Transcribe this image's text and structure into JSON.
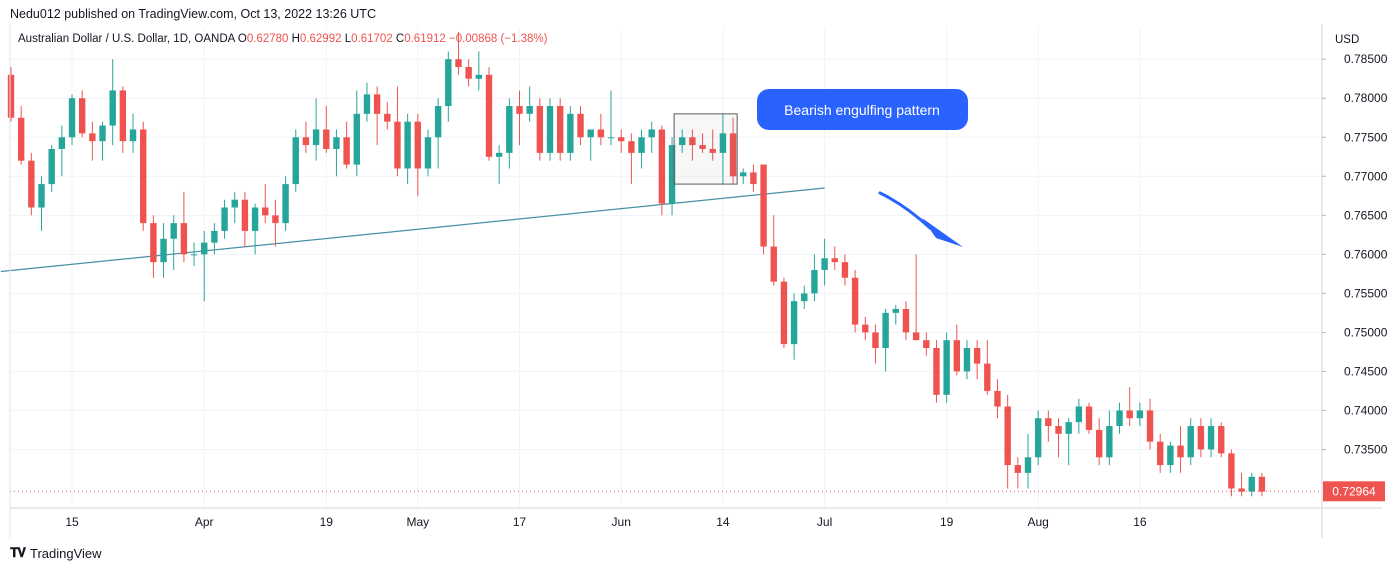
{
  "header": {
    "published": "Nedu012 published on TradingView.com, Oct 13, 2022 13:26 UTC",
    "symbol": "Australian Dollar / U.S. Dollar, 1D, OANDA",
    "o_label": "O",
    "o_value": "0.62780",
    "h_label": "H",
    "h_value": "0.62992",
    "l_label": "L",
    "l_value": "0.61702",
    "c_label": "C",
    "c_value": "0.61912",
    "change": "−0.00868 (−1.38%)",
    "currency": "USD"
  },
  "footer": {
    "brand": "TradingView",
    "brand_icon": "tradingview-logo-icon"
  },
  "colors": {
    "up": "#26a69a",
    "down": "#ef5350",
    "annotation": "#2962ff",
    "trendline": "#4a90a4",
    "grid": "#f0f3fa"
  },
  "chart_data": {
    "type": "candlestick",
    "ylim": [
      0.7275,
      0.789
    ],
    "yticks": [
      "0.78500",
      "0.78000",
      "0.77500",
      "0.77000",
      "0.76500",
      "0.76000",
      "0.75500",
      "0.75000",
      "0.74500",
      "0.74000",
      "0.73500"
    ],
    "last_price": "0.72964",
    "xticks": [
      {
        "label": "15",
        "index": 6
      },
      {
        "label": "Apr",
        "index": 19
      },
      {
        "label": "19",
        "index": 31
      },
      {
        "label": "May",
        "index": 40
      },
      {
        "label": "17",
        "index": 50
      },
      {
        "label": "Jun",
        "index": 60
      },
      {
        "label": "14",
        "index": 70
      },
      {
        "label": "Jul",
        "index": 80
      },
      {
        "label": "19",
        "index": 92
      },
      {
        "label": "Aug",
        "index": 101
      },
      {
        "label": "16",
        "index": 111
      }
    ],
    "annotation": {
      "text": "Bearish engulfing pattern"
    },
    "trendline": {
      "from": {
        "index": -1,
        "price": 0.7578
      },
      "to": {
        "index": 80,
        "price": 0.7685
      }
    },
    "pattern_box": {
      "from_index": 65.2,
      "to_index": 71.4,
      "price_high": 0.778,
      "price_low": 0.769
    },
    "candles": [
      [
        0.783,
        0.784,
        0.777,
        0.7775
      ],
      [
        0.7775,
        0.779,
        0.7715,
        0.772
      ],
      [
        0.772,
        0.773,
        0.765,
        0.766
      ],
      [
        0.766,
        0.77,
        0.763,
        0.769
      ],
      [
        0.769,
        0.774,
        0.768,
        0.7735
      ],
      [
        0.7735,
        0.7765,
        0.77,
        0.775
      ],
      [
        0.775,
        0.7805,
        0.774,
        0.78
      ],
      [
        0.78,
        0.781,
        0.775,
        0.7755
      ],
      [
        0.7755,
        0.777,
        0.772,
        0.7745
      ],
      [
        0.7745,
        0.777,
        0.772,
        0.7765
      ],
      [
        0.7765,
        0.785,
        0.774,
        0.781
      ],
      [
        0.781,
        0.7815,
        0.773,
        0.7745
      ],
      [
        0.7745,
        0.778,
        0.773,
        0.776
      ],
      [
        0.776,
        0.777,
        0.763,
        0.764
      ],
      [
        0.764,
        0.765,
        0.757,
        0.759
      ],
      [
        0.759,
        0.764,
        0.757,
        0.762
      ],
      [
        0.762,
        0.765,
        0.758,
        0.764
      ],
      [
        0.764,
        0.768,
        0.759,
        0.76
      ],
      [
        0.76,
        0.7615,
        0.7585,
        0.76
      ],
      [
        0.76,
        0.763,
        0.754,
        0.7615
      ],
      [
        0.7615,
        0.764,
        0.76,
        0.763
      ],
      [
        0.763,
        0.767,
        0.762,
        0.766
      ],
      [
        0.766,
        0.768,
        0.764,
        0.767
      ],
      [
        0.767,
        0.768,
        0.761,
        0.763
      ],
      [
        0.763,
        0.7665,
        0.76,
        0.766
      ],
      [
        0.766,
        0.769,
        0.764,
        0.765
      ],
      [
        0.765,
        0.767,
        0.761,
        0.764
      ],
      [
        0.764,
        0.77,
        0.763,
        0.769
      ],
      [
        0.769,
        0.776,
        0.768,
        0.775
      ],
      [
        0.775,
        0.777,
        0.773,
        0.774
      ],
      [
        0.774,
        0.78,
        0.772,
        0.776
      ],
      [
        0.776,
        0.779,
        0.773,
        0.7735
      ],
      [
        0.7735,
        0.776,
        0.77,
        0.775
      ],
      [
        0.775,
        0.777,
        0.771,
        0.7715
      ],
      [
        0.7715,
        0.781,
        0.77,
        0.778
      ],
      [
        0.778,
        0.782,
        0.777,
        0.7805
      ],
      [
        0.7805,
        0.7815,
        0.774,
        0.778
      ],
      [
        0.778,
        0.7795,
        0.776,
        0.777
      ],
      [
        0.777,
        0.7815,
        0.77,
        0.771
      ],
      [
        0.771,
        0.778,
        0.769,
        0.777
      ],
      [
        0.777,
        0.778,
        0.7675,
        0.771
      ],
      [
        0.771,
        0.776,
        0.77,
        0.775
      ],
      [
        0.775,
        0.78,
        0.771,
        0.779
      ],
      [
        0.779,
        0.786,
        0.777,
        0.785
      ],
      [
        0.785,
        0.7885,
        0.783,
        0.784
      ],
      [
        0.784,
        0.785,
        0.7815,
        0.7825
      ],
      [
        0.7825,
        0.786,
        0.781,
        0.783
      ],
      [
        0.783,
        0.784,
        0.772,
        0.7725
      ],
      [
        0.7725,
        0.774,
        0.769,
        0.773
      ],
      [
        0.773,
        0.78,
        0.771,
        0.779
      ],
      [
        0.779,
        0.781,
        0.774,
        0.778
      ],
      [
        0.778,
        0.7815,
        0.777,
        0.779
      ],
      [
        0.779,
        0.78,
        0.772,
        0.773
      ],
      [
        0.773,
        0.78,
        0.772,
        0.779
      ],
      [
        0.779,
        0.78,
        0.772,
        0.773
      ],
      [
        0.773,
        0.779,
        0.772,
        0.778
      ],
      [
        0.778,
        0.779,
        0.774,
        0.775
      ],
      [
        0.775,
        0.776,
        0.772,
        0.776
      ],
      [
        0.776,
        0.778,
        0.774,
        0.775
      ],
      [
        0.775,
        0.781,
        0.774,
        0.775
      ],
      [
        0.775,
        0.776,
        0.773,
        0.7745
      ],
      [
        0.7745,
        0.7755,
        0.769,
        0.773
      ],
      [
        0.773,
        0.776,
        0.771,
        0.775
      ],
      [
        0.775,
        0.777,
        0.773,
        0.776
      ],
      [
        0.776,
        0.7765,
        0.765,
        0.7665
      ],
      [
        0.7665,
        0.775,
        0.765,
        0.774
      ],
      [
        0.774,
        0.776,
        0.773,
        0.775
      ],
      [
        0.775,
        0.776,
        0.772,
        0.774
      ],
      [
        0.774,
        0.7755,
        0.773,
        0.7735
      ],
      [
        0.7735,
        0.776,
        0.772,
        0.773
      ],
      [
        0.773,
        0.778,
        0.769,
        0.7755
      ],
      [
        0.7755,
        0.7775,
        0.769,
        0.77
      ],
      [
        0.77,
        0.771,
        0.769,
        0.7705
      ],
      [
        0.7705,
        0.7715,
        0.768,
        0.769
      ],
      [
        0.7715,
        0.7715,
        0.76,
        0.761
      ],
      [
        0.761,
        0.765,
        0.756,
        0.7565
      ],
      [
        0.7565,
        0.757,
        0.748,
        0.7485
      ],
      [
        0.7485,
        0.755,
        0.7465,
        0.754
      ],
      [
        0.754,
        0.756,
        0.753,
        0.755
      ],
      [
        0.755,
        0.76,
        0.754,
        0.758
      ],
      [
        0.758,
        0.762,
        0.756,
        0.7595
      ],
      [
        0.7595,
        0.761,
        0.758,
        0.759
      ],
      [
        0.759,
        0.76,
        0.756,
        0.757
      ],
      [
        0.757,
        0.758,
        0.75,
        0.751
      ],
      [
        0.751,
        0.752,
        0.749,
        0.75
      ],
      [
        0.75,
        0.751,
        0.746,
        0.748
      ],
      [
        0.748,
        0.753,
        0.745,
        0.7525
      ],
      [
        0.7525,
        0.7535,
        0.751,
        0.753
      ],
      [
        0.753,
        0.754,
        0.749,
        0.75
      ],
      [
        0.75,
        0.76,
        0.749,
        0.749
      ],
      [
        0.749,
        0.75,
        0.747,
        0.748
      ],
      [
        0.748,
        0.749,
        0.741,
        0.742
      ],
      [
        0.742,
        0.75,
        0.741,
        0.749
      ],
      [
        0.749,
        0.751,
        0.7445,
        0.745
      ],
      [
        0.745,
        0.749,
        0.744,
        0.748
      ],
      [
        0.748,
        0.749,
        0.744,
        0.746
      ],
      [
        0.746,
        0.749,
        0.742,
        0.7425
      ],
      [
        0.7425,
        0.744,
        0.739,
        0.7405
      ],
      [
        0.7405,
        0.742,
        0.73,
        0.733
      ],
      [
        0.733,
        0.734,
        0.73,
        0.732
      ],
      [
        0.732,
        0.737,
        0.73,
        0.734
      ],
      [
        0.734,
        0.74,
        0.733,
        0.739
      ],
      [
        0.739,
        0.74,
        0.736,
        0.738
      ],
      [
        0.738,
        0.739,
        0.734,
        0.737
      ],
      [
        0.737,
        0.739,
        0.733,
        0.7385
      ],
      [
        0.7385,
        0.7415,
        0.737,
        0.7405
      ],
      [
        0.7405,
        0.741,
        0.737,
        0.7375
      ],
      [
        0.7375,
        0.739,
        0.733,
        0.734
      ],
      [
        0.734,
        0.74,
        0.733,
        0.738
      ],
      [
        0.738,
        0.741,
        0.737,
        0.74
      ],
      [
        0.74,
        0.743,
        0.738,
        0.739
      ],
      [
        0.739,
        0.741,
        0.738,
        0.74
      ],
      [
        0.74,
        0.7415,
        0.735,
        0.736
      ],
      [
        0.736,
        0.737,
        0.732,
        0.733
      ],
      [
        0.733,
        0.736,
        0.732,
        0.7355
      ],
      [
        0.7355,
        0.738,
        0.732,
        0.734
      ],
      [
        0.734,
        0.739,
        0.733,
        0.738
      ],
      [
        0.738,
        0.739,
        0.734,
        0.735
      ],
      [
        0.735,
        0.739,
        0.734,
        0.738
      ],
      [
        0.738,
        0.7385,
        0.734,
        0.7345
      ],
      [
        0.7345,
        0.735,
        0.729,
        0.73
      ],
      [
        0.73,
        0.732,
        0.729,
        0.7296
      ],
      [
        0.7296,
        0.732,
        0.729,
        0.7315
      ],
      [
        0.7315,
        0.732,
        0.729,
        0.7296
      ]
    ]
  }
}
